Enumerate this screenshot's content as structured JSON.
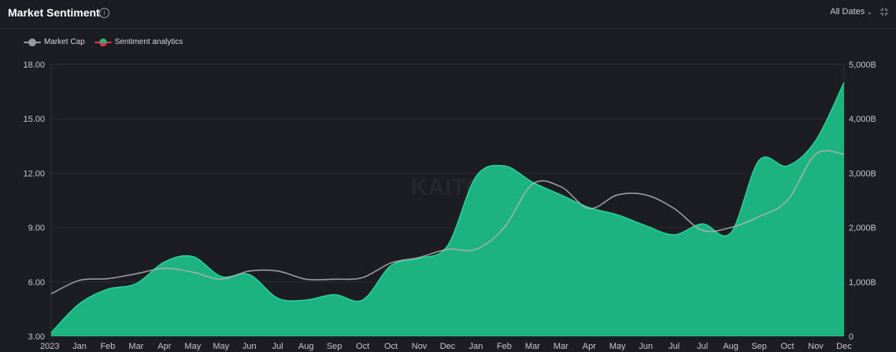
{
  "header": {
    "title": "Market Sentiment",
    "info_glyph": "i",
    "date_filter": "All Dates",
    "chevron_glyph": "⌄"
  },
  "legend": [
    {
      "label": "Market Cap",
      "color": "#9a9a9a"
    },
    {
      "label": "Sentiment analytics",
      "color": "#1db784",
      "secondary_color": "#e0383e"
    }
  ],
  "watermark": "KAITO",
  "icons": [
    "info-icon",
    "chevron-down-icon",
    "expand-icon"
  ],
  "chart_data": {
    "type": "area",
    "x_labels": [
      "2023",
      "Jan",
      "Feb",
      "Mar",
      "Apr",
      "May",
      "May",
      "Jun",
      "Jul",
      "Aug",
      "Sep",
      "Oct",
      "Oct",
      "Nov",
      "Dec",
      "Jan",
      "Feb",
      "Mar",
      "Mar",
      "Apr",
      "May",
      "Jun",
      "Jul",
      "Jul",
      "Aug",
      "Sep",
      "Oct",
      "Nov",
      "Dec"
    ],
    "y_left": {
      "ticks": [
        "3.00",
        "6.00",
        "9.00",
        "12.00",
        "15.00",
        "18.00"
      ],
      "min": 3,
      "max": 18
    },
    "y_right": {
      "ticks": [
        "0",
        "1,000B",
        "2,000B",
        "3,000B",
        "4,000B",
        "5,000B"
      ],
      "min": 0,
      "max": 5000
    },
    "series": [
      {
        "name": "Sentiment analytics",
        "axis": "left",
        "color": "#1db784",
        "values": [
          3.2,
          4.8,
          5.6,
          5.9,
          7.1,
          7.4,
          6.3,
          6.4,
          5.1,
          5.0,
          5.3,
          5.0,
          6.9,
          7.3,
          8.0,
          11.8,
          12.4,
          11.5,
          10.8,
          10.1,
          9.7,
          9.1,
          8.6,
          9.2,
          8.7,
          12.7,
          12.4,
          13.8,
          17.0
        ]
      },
      {
        "name": "Market Cap",
        "axis": "right",
        "color": "#9a9a9a",
        "values": [
          780,
          1030,
          1060,
          1150,
          1250,
          1180,
          1050,
          1200,
          1200,
          1050,
          1050,
          1080,
          1350,
          1450,
          1600,
          1600,
          2000,
          2800,
          2750,
          2350,
          2600,
          2600,
          2350,
          1950,
          2000,
          2200,
          2500,
          3350,
          3350
        ]
      }
    ],
    "grid": true
  }
}
